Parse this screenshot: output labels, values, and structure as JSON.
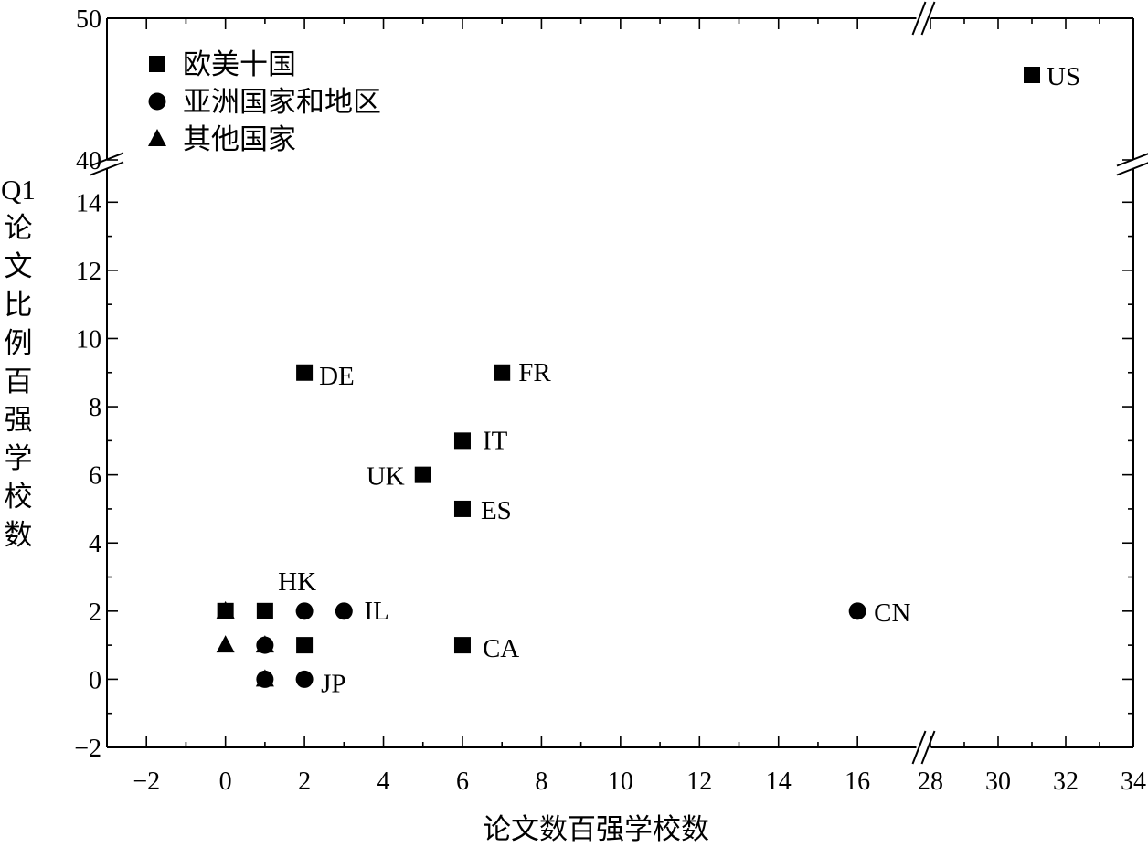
{
  "chart_data": {
    "type": "scatter",
    "title": "",
    "xlabel": "论文数百强学校数",
    "ylabel": "Q1论文比例百强学校数",
    "x_axis": {
      "break": [
        17.5,
        28
      ],
      "lower_segment": {
        "range": [
          -3,
          17.5
        ],
        "ticks": [
          -2,
          0,
          2,
          4,
          6,
          8,
          10,
          12,
          14,
          16
        ]
      },
      "upper_segment": {
        "range": [
          28,
          34
        ],
        "ticks": [
          28,
          30,
          32,
          34
        ]
      }
    },
    "y_axis": {
      "break": [
        15,
        40
      ],
      "lower_segment": {
        "range": [
          -2,
          15
        ],
        "ticks": [
          -2,
          0,
          2,
          4,
          6,
          8,
          10,
          12,
          14
        ]
      },
      "upper_segment": {
        "range": [
          40,
          50
        ],
        "ticks": [
          40,
          50
        ]
      }
    },
    "grid": false,
    "legend_position": "top-left",
    "series": [
      {
        "name": "欧美十国",
        "marker": "square",
        "points": [
          {
            "x": 31,
            "y": 46,
            "label": "US"
          },
          {
            "x": 2,
            "y": 9,
            "label": "DE"
          },
          {
            "x": 7,
            "y": 9,
            "label": "FR"
          },
          {
            "x": 6,
            "y": 7,
            "label": "IT"
          },
          {
            "x": 5,
            "y": 6,
            "label": "UK"
          },
          {
            "x": 6,
            "y": 5,
            "label": "ES"
          },
          {
            "x": 6,
            "y": 1,
            "label": "CA"
          },
          {
            "x": 0,
            "y": 2,
            "label": ""
          },
          {
            "x": 1,
            "y": 2,
            "label": ""
          },
          {
            "x": 2,
            "y": 1,
            "label": ""
          }
        ]
      },
      {
        "name": "亚洲国家和地区",
        "marker": "circle",
        "points": [
          {
            "x": 16,
            "y": 2,
            "label": "CN"
          },
          {
            "x": 3,
            "y": 2,
            "label": "IL"
          },
          {
            "x": 2,
            "y": 2,
            "label": "HK"
          },
          {
            "x": 2,
            "y": 0,
            "label": "JP"
          },
          {
            "x": 1,
            "y": 1,
            "label": ""
          },
          {
            "x": 1,
            "y": 0,
            "label": ""
          }
        ]
      },
      {
        "name": "其他国家",
        "marker": "triangle",
        "points": [
          {
            "x": 0,
            "y": 1,
            "label": ""
          },
          {
            "x": 0,
            "y": 2,
            "label": ""
          },
          {
            "x": 1,
            "y": 1,
            "label": ""
          },
          {
            "x": 1,
            "y": 0,
            "label": ""
          }
        ]
      }
    ]
  }
}
